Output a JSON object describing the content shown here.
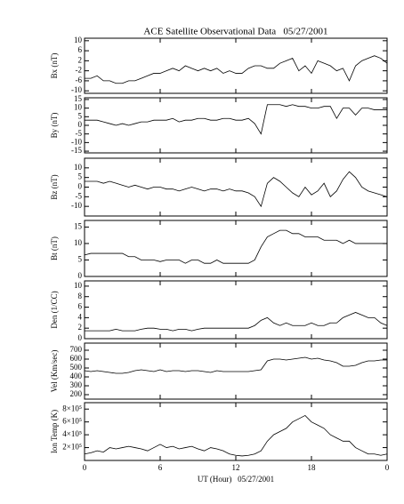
{
  "chart_data": [
    {
      "type": "line",
      "title": "ACE Satellite Observational Data   05/27/2001",
      "ylabel": "Bx (nT)",
      "color": "#000000",
      "x": [
        0,
        0.5,
        1,
        1.5,
        2,
        2.5,
        3,
        3.5,
        4,
        4.5,
        5,
        5.5,
        6,
        6.5,
        7,
        7.5,
        8,
        8.5,
        9,
        9.5,
        10,
        10.5,
        11,
        11.5,
        12,
        12.5,
        13,
        13.5,
        14,
        14.5,
        15,
        15.5,
        16,
        16.5,
        17,
        17.5,
        18,
        18.5,
        19,
        19.5,
        20,
        20.5,
        21,
        21.5,
        22,
        22.5,
        23,
        23.5,
        24
      ],
      "values": [
        -5,
        -5,
        -4,
        -6,
        -6,
        -7,
        -7,
        -6,
        -6,
        -5,
        -4,
        -3,
        -3,
        -2,
        -1,
        -2,
        0,
        -1,
        -2,
        -1,
        -2,
        -1,
        -3,
        -2,
        -3,
        -3,
        -1,
        0,
        0,
        -1,
        -1,
        1,
        2,
        3,
        -2,
        0,
        -3,
        2,
        1,
        0,
        -2,
        -1,
        -6,
        0,
        2,
        3,
        4,
        3,
        1
      ],
      "ylim": [
        -11,
        11
      ],
      "yticks": [
        -10,
        -6,
        -2,
        2,
        6,
        10
      ]
    },
    {
      "type": "line",
      "ylabel": "By (nT)",
      "color": "#000000",
      "x": [
        0,
        0.5,
        1,
        1.5,
        2,
        2.5,
        3,
        3.5,
        4,
        4.5,
        5,
        5.5,
        6,
        6.5,
        7,
        7.5,
        8,
        8.5,
        9,
        9.5,
        10,
        10.5,
        11,
        11.5,
        12,
        12.5,
        13,
        13.5,
        14,
        14.5,
        15,
        15.5,
        16,
        16.5,
        17,
        17.5,
        18,
        18.5,
        19,
        19.5,
        20,
        20.5,
        21,
        21.5,
        22,
        22.5,
        23,
        23.5,
        24
      ],
      "values": [
        3,
        3,
        3,
        2,
        1,
        0,
        1,
        0,
        1,
        2,
        2,
        3,
        3,
        3,
        4,
        2,
        3,
        3,
        4,
        4,
        3,
        3,
        4,
        4,
        3,
        3,
        4,
        1,
        -5,
        12,
        12,
        12,
        11,
        12,
        11,
        11,
        10,
        10,
        11,
        11,
        4,
        10,
        10,
        6,
        10,
        10,
        9,
        9,
        9
      ],
      "ylim": [
        -16,
        16
      ],
      "yticks": [
        -15,
        -10,
        -5,
        0,
        5,
        10,
        15
      ]
    },
    {
      "type": "line",
      "ylabel": "Bz (nT)",
      "color": "#000000",
      "x": [
        0,
        0.5,
        1,
        1.5,
        2,
        2.5,
        3,
        3.5,
        4,
        4.5,
        5,
        5.5,
        6,
        6.5,
        7,
        7.5,
        8,
        8.5,
        9,
        9.5,
        10,
        10.5,
        11,
        11.5,
        12,
        12.5,
        13,
        13.5,
        14,
        14.5,
        15,
        15.5,
        16,
        16.5,
        17,
        17.5,
        18,
        18.5,
        19,
        19.5,
        20,
        20.5,
        21,
        21.5,
        22,
        22.5,
        23,
        23.5,
        24
      ],
      "values": [
        3,
        3,
        3,
        2,
        3,
        2,
        1,
        0,
        1,
        0,
        -1,
        0,
        0,
        -1,
        -1,
        -2,
        -1,
        0,
        -1,
        -2,
        -1,
        -1,
        -2,
        -1,
        -2,
        -2,
        -3,
        -5,
        -10,
        2,
        5,
        3,
        0,
        -3,
        -5,
        0,
        -4,
        -2,
        2,
        -5,
        -2,
        4,
        8,
        5,
        0,
        -2,
        -3,
        -4,
        -5
      ],
      "ylim": [
        -15,
        15
      ],
      "yticks": [
        -10,
        -5,
        0,
        5,
        10
      ]
    },
    {
      "type": "line",
      "ylabel": "Bt (nT)",
      "color": "#000000",
      "x": [
        0,
        0.5,
        1,
        1.5,
        2,
        2.5,
        3,
        3.5,
        4,
        4.5,
        5,
        5.5,
        6,
        6.5,
        7,
        7.5,
        8,
        8.5,
        9,
        9.5,
        10,
        10.5,
        11,
        11.5,
        12,
        12.5,
        13,
        13.5,
        14,
        14.5,
        15,
        15.5,
        16,
        16.5,
        17,
        17.5,
        18,
        18.5,
        19,
        19.5,
        20,
        20.5,
        21,
        21.5,
        22,
        22.5,
        23,
        23.5,
        24
      ],
      "values": [
        6.5,
        7,
        7,
        7,
        7,
        7,
        7,
        6,
        6,
        5,
        5,
        5,
        4.5,
        5,
        5,
        5,
        4,
        5,
        5,
        4,
        4,
        5,
        4,
        4,
        4,
        4,
        4,
        5,
        9,
        12,
        13,
        14,
        14,
        13,
        13,
        12,
        12,
        12,
        11,
        11,
        11,
        10,
        11,
        10,
        10,
        10,
        10,
        10,
        10
      ],
      "ylim": [
        0,
        17
      ],
      "yticks": [
        0,
        5,
        10,
        15
      ]
    },
    {
      "type": "line",
      "ylabel": "Den (1/CC)",
      "color": "#000000",
      "x": [
        0,
        0.5,
        1,
        1.5,
        2,
        2.5,
        3,
        3.5,
        4,
        4.5,
        5,
        5.5,
        6,
        6.5,
        7,
        7.5,
        8,
        8.5,
        9,
        9.5,
        10,
        10.5,
        11,
        11.5,
        12,
        12.5,
        13,
        13.5,
        14,
        14.5,
        15,
        15.5,
        16,
        16.5,
        17,
        17.5,
        18,
        18.5,
        19,
        19.5,
        20,
        20.5,
        21,
        21.5,
        22,
        22.5,
        23,
        23.5,
        24
      ],
      "values": [
        1.5,
        1.5,
        1.5,
        1.5,
        1.5,
        1.8,
        1.5,
        1.5,
        1.5,
        1.8,
        2,
        2,
        1.8,
        1.8,
        1.5,
        1.8,
        1.8,
        1.5,
        1.8,
        2,
        2,
        2,
        2,
        2,
        2,
        2,
        2,
        2.5,
        3.5,
        4,
        3,
        2.5,
        3,
        2.5,
        2.5,
        2.5,
        3,
        2.5,
        2.5,
        3,
        3,
        4,
        4.5,
        5,
        4.5,
        4,
        4,
        3,
        2.5
      ],
      "ylim": [
        0,
        11
      ],
      "yticks": [
        0,
        2,
        4,
        6,
        8,
        10
      ]
    },
    {
      "type": "line",
      "ylabel": "Vel (Km/sec)",
      "color": "#000000",
      "x": [
        0,
        0.5,
        1,
        1.5,
        2,
        2.5,
        3,
        3.5,
        4,
        4.5,
        5,
        5.5,
        6,
        6.5,
        7,
        7.5,
        8,
        8.5,
        9,
        9.5,
        10,
        10.5,
        11,
        11.5,
        12,
        12.5,
        13,
        13.5,
        14,
        14.5,
        15,
        15.5,
        16,
        16.5,
        17,
        17.5,
        18,
        18.5,
        19,
        19.5,
        20,
        20.5,
        21,
        21.5,
        22,
        22.5,
        23,
        23.5,
        24
      ],
      "values": [
        470,
        460,
        470,
        460,
        450,
        440,
        440,
        450,
        470,
        480,
        470,
        460,
        480,
        460,
        470,
        470,
        460,
        470,
        470,
        460,
        450,
        470,
        460,
        460,
        460,
        460,
        460,
        470,
        480,
        580,
        600,
        600,
        590,
        600,
        610,
        620,
        600,
        610,
        590,
        580,
        560,
        520,
        520,
        530,
        560,
        580,
        580,
        590,
        590
      ],
      "ylim": [
        150,
        780
      ],
      "yticks": [
        200,
        300,
        400,
        500,
        600,
        700
      ]
    },
    {
      "type": "line",
      "ylabel": "Ion Temp (K)",
      "xlabel": "UT (Hour)   05/27/2001",
      "color": "#000000",
      "x": [
        0,
        0.5,
        1,
        1.5,
        2,
        2.5,
        3,
        3.5,
        4,
        4.5,
        5,
        5.5,
        6,
        6.5,
        7,
        7.5,
        8,
        8.5,
        9,
        9.5,
        10,
        10.5,
        11,
        11.5,
        12,
        12.5,
        13,
        13.5,
        14,
        14.5,
        15,
        15.5,
        16,
        16.5,
        17,
        17.5,
        18,
        18.5,
        19,
        19.5,
        20,
        20.5,
        21,
        21.5,
        22,
        22.5,
        23,
        23.5,
        24
      ],
      "values": [
        100000,
        120000,
        150000,
        130000,
        200000,
        180000,
        200000,
        220000,
        200000,
        180000,
        150000,
        200000,
        250000,
        200000,
        220000,
        180000,
        200000,
        220000,
        180000,
        150000,
        200000,
        180000,
        150000,
        100000,
        80000,
        70000,
        80000,
        100000,
        150000,
        300000,
        400000,
        450000,
        500000,
        600000,
        650000,
        700000,
        600000,
        550000,
        500000,
        400000,
        350000,
        300000,
        300000,
        200000,
        150000,
        100000,
        100000,
        80000,
        100000
      ],
      "ylim": [
        0,
        900000
      ],
      "yticks": [
        {
          "value": 200000,
          "label": "2×10⁵"
        },
        {
          "value": 400000,
          "label": "4×10⁵"
        },
        {
          "value": 600000,
          "label": "6×10⁵"
        },
        {
          "value": 800000,
          "label": "8×10⁵"
        }
      ],
      "xlim": [
        0,
        24
      ],
      "xticks": [
        0,
        6,
        12,
        18,
        {
          "value": 24,
          "label": "0"
        }
      ]
    }
  ]
}
